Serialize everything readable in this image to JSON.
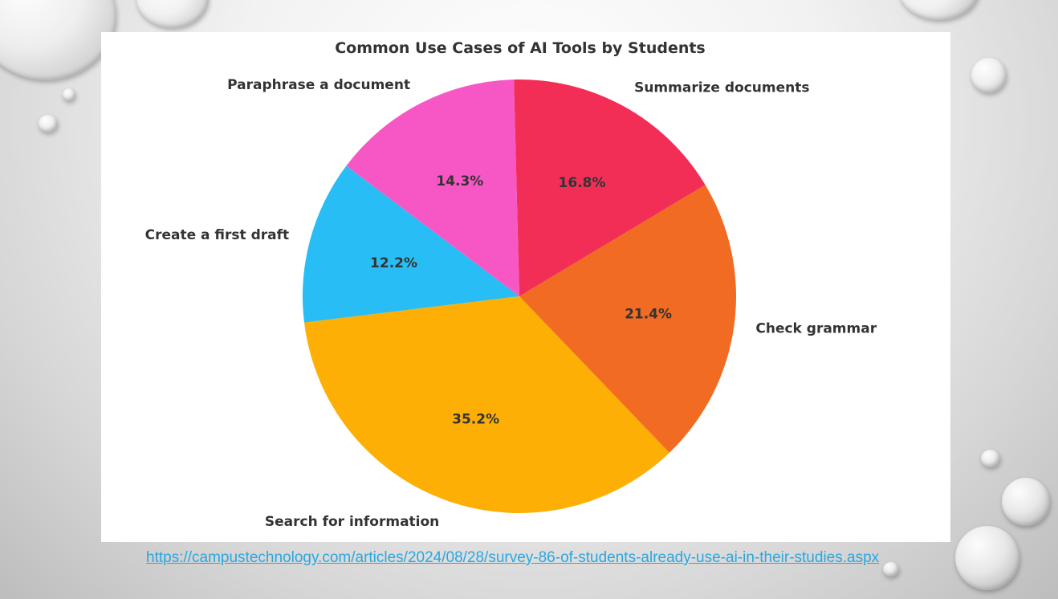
{
  "chart_data": {
    "type": "pie",
    "title": "Common Use Cases of AI Tools by Students",
    "slices": [
      {
        "label": "Create a first draft",
        "value": 12.2,
        "pct_label": "12.2%",
        "color": "#29bdf5"
      },
      {
        "label": "Search for information",
        "value": 35.2,
        "pct_label": "35.2%",
        "color": "#fdaf05"
      },
      {
        "label": "Check grammar",
        "value": 21.4,
        "pct_label": "21.4%",
        "color": "#f26b22"
      },
      {
        "label": "Summarize documents",
        "value": 16.8,
        "pct_label": "16.8%",
        "color": "#f22e57"
      },
      {
        "label": "Paraphrase a document",
        "value": 14.3,
        "pct_label": "14.3%",
        "color": "#f757c5"
      }
    ],
    "legend": "none"
  },
  "source": {
    "url_text": "https://campustechnology.com/articles/2024/08/28/survey-86-of-students-already-use-ai-in-their-studies.aspx"
  }
}
